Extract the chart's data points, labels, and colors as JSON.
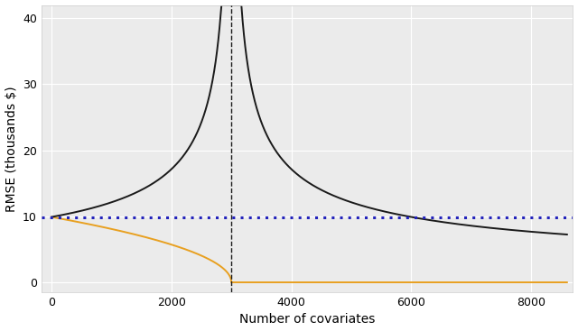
{
  "title": "",
  "xlabel": "Number of covariates",
  "ylabel": "RMSE (thousands $)",
  "xlim": [
    -170,
    8700
  ],
  "ylim": [
    -1.5,
    42
  ],
  "yticks": [
    0,
    10,
    20,
    30,
    40
  ],
  "xticks": [
    0,
    2000,
    4000,
    6000,
    8000
  ],
  "vline_x": 3000,
  "hline_y": 9.9,
  "n_obs": 3000,
  "x_max": 8600,
  "sigma": 9.9,
  "background_color": "#ebebeb",
  "black_line_color": "#1a1a1a",
  "orange_line_color": "#e8a020",
  "blue_hline_color": "#2222bb",
  "vline_color": "#1a1a1a",
  "grid_color": "#ffffff",
  "spine_color": "#cccccc"
}
